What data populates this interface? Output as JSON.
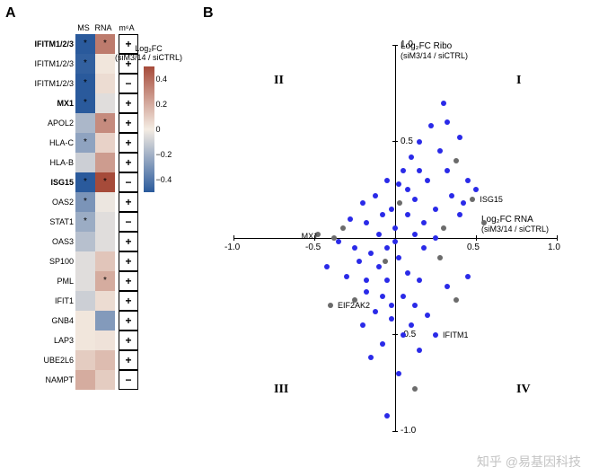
{
  "labels": {
    "panelA": "A",
    "panelB": "B"
  },
  "heatmap": {
    "columns": [
      "MS",
      "RNA",
      "m⁶A"
    ],
    "colorscale": {
      "title": "Log₂FC\n(siM3/14 / siCTRL)",
      "min": -0.5,
      "max": 0.5,
      "ticks": [
        {
          "v": 0.4,
          "l": "0.4"
        },
        {
          "v": 0.2,
          "l": "0.2"
        },
        {
          "v": 0.0,
          "l": "0"
        },
        {
          "v": -0.2,
          "l": "−0.2"
        },
        {
          "v": -0.4,
          "l": "−0.4"
        }
      ],
      "neg_color": "#2a5a9c",
      "pos_color": "#a64b3a",
      "zero_color": "#f4ece3"
    },
    "rows": [
      {
        "label": "IFITM1/2/3",
        "bold": true,
        "ms": -0.5,
        "ms_star": true,
        "rna": 0.35,
        "rna_star": true,
        "m6a": "+"
      },
      {
        "label": "IFITM1/2/3",
        "bold": false,
        "ms": -0.48,
        "ms_star": true,
        "rna": 0.02,
        "m6a": "+"
      },
      {
        "label": "IFITM1/2/3",
        "bold": false,
        "ms": -0.5,
        "ms_star": true,
        "rna": 0.05,
        "m6a": "−"
      },
      {
        "label": "MX1",
        "bold": true,
        "ms": -0.5,
        "ms_star": true,
        "rna": -0.05,
        "m6a": "+"
      },
      {
        "label": "APOL2",
        "ms": -0.18,
        "rna": 0.3,
        "rna_star": true,
        "m6a": "+"
      },
      {
        "label": "HLA-C",
        "ms": -0.25,
        "ms_star": true,
        "rna": 0.08,
        "m6a": "+"
      },
      {
        "label": "HLA-B",
        "ms": -0.1,
        "rna": 0.25,
        "m6a": "+"
      },
      {
        "label": "ISG15",
        "bold": true,
        "ms": -0.5,
        "ms_star": true,
        "rna": 0.5,
        "rna_star": true,
        "m6a": "−"
      },
      {
        "label": "OAS2",
        "ms": -0.3,
        "ms_star": true,
        "rna": -0.02,
        "m6a": "+"
      },
      {
        "label": "STAT1",
        "ms": -0.22,
        "ms_star": true,
        "rna": -0.05,
        "m6a": "−"
      },
      {
        "label": "OAS3",
        "ms": -0.15,
        "rna": -0.05,
        "m6a": "+"
      },
      {
        "label": "SP100",
        "ms": -0.05,
        "rna": 0.12,
        "m6a": "+"
      },
      {
        "label": "PML",
        "ms": -0.05,
        "rna": 0.2,
        "rna_star": true,
        "m6a": "+"
      },
      {
        "label": "IFIT1",
        "ms": -0.1,
        "rna": 0.05,
        "m6a": "+"
      },
      {
        "label": "GNB4",
        "ms": 0.02,
        "rna": -0.28,
        "m6a": "+"
      },
      {
        "label": "LAP3",
        "ms": 0.02,
        "rna": 0.03,
        "m6a": "+"
      },
      {
        "label": "UBE2L6",
        "ms": 0.1,
        "rna": 0.15,
        "m6a": "+"
      },
      {
        "label": "NAMPT",
        "ms": 0.2,
        "rna": 0.1,
        "m6a": "−"
      }
    ]
  },
  "scatter": {
    "x_label": "Log₂FC RNA",
    "x_sub": "(siM3/14 / siCTRL)",
    "y_label": "Log₂FC Ribo",
    "y_sub": "(siM3/14 / siCTRL)",
    "xlim": [
      -1.0,
      1.0
    ],
    "ylim": [
      -1.0,
      1.0
    ],
    "xticks": [
      {
        "v": -1.0,
        "l": "-1.0"
      },
      {
        "v": -0.5,
        "l": "-0.5"
      },
      {
        "v": 0.5,
        "l": "0.5"
      },
      {
        "v": 1.0,
        "l": "1.0"
      }
    ],
    "yticks": [
      {
        "v": 1.0,
        "l": "1.0"
      },
      {
        "v": 0.5,
        "l": "0.5"
      },
      {
        "v": -0.5,
        "l": "-0.5"
      },
      {
        "v": -1.0,
        "l": "-1.0"
      }
    ],
    "quadrants": {
      "tl": "II",
      "tr": "I",
      "bl": "III",
      "br": "IV"
    },
    "point_size": 6,
    "colors": {
      "blue": "#2a2ae8",
      "gray": "#6b6b6b"
    },
    "labeled": [
      {
        "x": 0.48,
        "y": 0.2,
        "label": "ISG15",
        "c": "gray",
        "lx": 6,
        "ly": 0
      },
      {
        "x": -0.38,
        "y": 0.0,
        "label": "MX1",
        "c": "gray",
        "lx": -38,
        "ly": -2
      },
      {
        "x": -0.4,
        "y": -0.35,
        "label": "EIF2AK2",
        "c": "gray",
        "lx": 6,
        "ly": 0
      },
      {
        "x": 0.25,
        "y": -0.5,
        "label": "IFITM1",
        "c": "blue",
        "lx": 6,
        "ly": 0
      }
    ],
    "points": [
      {
        "x": 0.3,
        "y": 0.7,
        "c": "blue"
      },
      {
        "x": 0.22,
        "y": 0.58,
        "c": "blue"
      },
      {
        "x": 0.4,
        "y": 0.52,
        "c": "blue"
      },
      {
        "x": 0.15,
        "y": 0.5,
        "c": "blue"
      },
      {
        "x": 0.28,
        "y": 0.45,
        "c": "blue"
      },
      {
        "x": 0.38,
        "y": 0.4,
        "c": "gray"
      },
      {
        "x": 0.1,
        "y": 0.42,
        "c": "blue"
      },
      {
        "x": 0.05,
        "y": 0.35,
        "c": "blue"
      },
      {
        "x": 0.32,
        "y": 0.35,
        "c": "blue"
      },
      {
        "x": 0.45,
        "y": 0.3,
        "c": "blue"
      },
      {
        "x": 0.2,
        "y": 0.3,
        "c": "blue"
      },
      {
        "x": 0.02,
        "y": 0.28,
        "c": "blue"
      },
      {
        "x": 0.5,
        "y": 0.25,
        "c": "blue"
      },
      {
        "x": 0.35,
        "y": 0.22,
        "c": "blue"
      },
      {
        "x": 0.12,
        "y": 0.2,
        "c": "blue"
      },
      {
        "x": 0.25,
        "y": 0.15,
        "c": "blue"
      },
      {
        "x": 0.4,
        "y": 0.12,
        "c": "blue"
      },
      {
        "x": 0.08,
        "y": 0.12,
        "c": "blue"
      },
      {
        "x": 0.18,
        "y": 0.08,
        "c": "blue"
      },
      {
        "x": 0.3,
        "y": 0.05,
        "c": "gray"
      },
      {
        "x": 0.55,
        "y": 0.08,
        "c": "gray"
      },
      {
        "x": -0.05,
        "y": 0.3,
        "c": "blue"
      },
      {
        "x": -0.12,
        "y": 0.22,
        "c": "blue"
      },
      {
        "x": -0.2,
        "y": 0.18,
        "c": "blue"
      },
      {
        "x": -0.08,
        "y": 0.12,
        "c": "blue"
      },
      {
        "x": -0.18,
        "y": 0.08,
        "c": "blue"
      },
      {
        "x": -0.28,
        "y": 0.1,
        "c": "blue"
      },
      {
        "x": -0.35,
        "y": -0.02,
        "c": "blue"
      },
      {
        "x": -0.48,
        "y": 0.02,
        "c": "gray"
      },
      {
        "x": -0.25,
        "y": -0.05,
        "c": "blue"
      },
      {
        "x": -0.15,
        "y": -0.08,
        "c": "blue"
      },
      {
        "x": -0.05,
        "y": -0.05,
        "c": "blue"
      },
      {
        "x": 0.02,
        "y": -0.1,
        "c": "blue"
      },
      {
        "x": -0.1,
        "y": -0.15,
        "c": "blue"
      },
      {
        "x": -0.22,
        "y": -0.12,
        "c": "blue"
      },
      {
        "x": -0.3,
        "y": -0.2,
        "c": "blue"
      },
      {
        "x": -0.05,
        "y": -0.22,
        "c": "blue"
      },
      {
        "x": 0.08,
        "y": -0.18,
        "c": "blue"
      },
      {
        "x": 0.15,
        "y": -0.22,
        "c": "blue"
      },
      {
        "x": -0.18,
        "y": -0.28,
        "c": "blue"
      },
      {
        "x": -0.08,
        "y": -0.3,
        "c": "blue"
      },
      {
        "x": 0.05,
        "y": -0.3,
        "c": "blue"
      },
      {
        "x": -0.25,
        "y": -0.32,
        "c": "gray"
      },
      {
        "x": -0.12,
        "y": -0.38,
        "c": "blue"
      },
      {
        "x": 0.12,
        "y": -0.35,
        "c": "blue"
      },
      {
        "x": -0.02,
        "y": -0.42,
        "c": "blue"
      },
      {
        "x": 0.2,
        "y": -0.4,
        "c": "blue"
      },
      {
        "x": -0.2,
        "y": -0.45,
        "c": "blue"
      },
      {
        "x": 0.05,
        "y": -0.5,
        "c": "blue"
      },
      {
        "x": -0.08,
        "y": -0.55,
        "c": "blue"
      },
      {
        "x": 0.15,
        "y": -0.58,
        "c": "blue"
      },
      {
        "x": -0.15,
        "y": -0.62,
        "c": "blue"
      },
      {
        "x": 0.02,
        "y": -0.7,
        "c": "blue"
      },
      {
        "x": 0.12,
        "y": -0.78,
        "c": "gray"
      },
      {
        "x": -0.05,
        "y": -0.92,
        "c": "blue"
      },
      {
        "x": 0.32,
        "y": -0.25,
        "c": "blue"
      },
      {
        "x": 0.45,
        "y": -0.2,
        "c": "blue"
      },
      {
        "x": 0.38,
        "y": -0.32,
        "c": "gray"
      },
      {
        "x": 0.28,
        "y": -0.1,
        "c": "gray"
      },
      {
        "x": 0.25,
        "y": 0.0,
        "c": "blue"
      },
      {
        "x": -0.42,
        "y": -0.15,
        "c": "blue"
      },
      {
        "x": -0.32,
        "y": 0.05,
        "c": "gray"
      },
      {
        "x": 0.0,
        "y": 0.05,
        "c": "blue"
      },
      {
        "x": 0.0,
        "y": -0.02,
        "c": "blue"
      },
      {
        "x": 0.03,
        "y": 0.18,
        "c": "gray"
      },
      {
        "x": 0.08,
        "y": 0.25,
        "c": "blue"
      },
      {
        "x": 0.32,
        "y": 0.6,
        "c": "blue"
      },
      {
        "x": 0.15,
        "y": 0.35,
        "c": "blue"
      },
      {
        "x": -0.02,
        "y": 0.15,
        "c": "blue"
      },
      {
        "x": 0.42,
        "y": 0.18,
        "c": "blue"
      },
      {
        "x": -0.1,
        "y": 0.02,
        "c": "blue"
      },
      {
        "x": -0.02,
        "y": -0.35,
        "c": "blue"
      },
      {
        "x": 0.1,
        "y": -0.45,
        "c": "blue"
      },
      {
        "x": -0.06,
        "y": -0.12,
        "c": "gray"
      },
      {
        "x": 0.18,
        "y": -0.05,
        "c": "blue"
      },
      {
        "x": 0.12,
        "y": 0.02,
        "c": "blue"
      },
      {
        "x": -0.18,
        "y": -0.22,
        "c": "blue"
      }
    ]
  },
  "watermark": "知乎 @易基因科技"
}
